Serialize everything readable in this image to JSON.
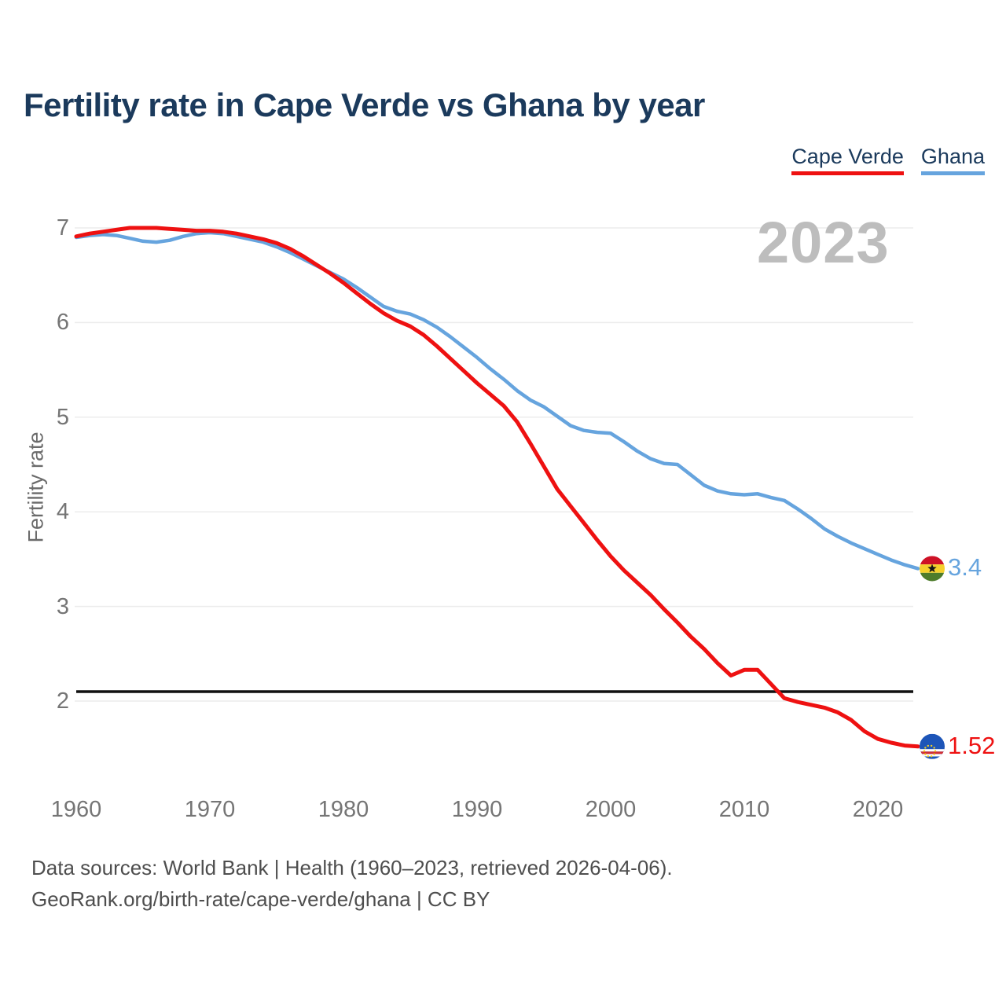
{
  "title": "Fertility rate in Cape Verde vs Ghana by year",
  "legend": [
    {
      "label": "Cape Verde",
      "color": "#ee1111"
    },
    {
      "label": "Ghana",
      "color": "#66a4de"
    }
  ],
  "watermark": "2023",
  "footer": {
    "line1": "Data sources: World Bank | Health (1960–2023, retrieved 2026-04-06).",
    "line2": "GeoRank.org/birth-rate/cape-verde/ghana | CC BY"
  },
  "chart_data": {
    "type": "line",
    "title": "Fertility rate in Cape Verde vs Ghana by year",
    "xlabel": "",
    "ylabel": "Fertility rate",
    "x_start": 1960,
    "x_end": 2023,
    "x_ticks": [
      1960,
      1970,
      1980,
      1990,
      2000,
      2010,
      2020
    ],
    "y_ticks": [
      7,
      6,
      5,
      4,
      3,
      2
    ],
    "ylim": [
      1.3,
      7.1
    ],
    "grid": true,
    "legend_position": "top-right",
    "refline": {
      "value": 2.1,
      "color": "#111111"
    },
    "series": [
      {
        "name": "Ghana",
        "color": "#66a4de",
        "end_label": "3.4",
        "flag": "ghana",
        "values": [
          6.9,
          6.92,
          6.93,
          6.92,
          6.89,
          6.86,
          6.85,
          6.87,
          6.91,
          6.94,
          6.95,
          6.94,
          6.91,
          6.88,
          6.85,
          6.8,
          6.74,
          6.67,
          6.6,
          6.53,
          6.46,
          6.37,
          6.27,
          6.17,
          6.12,
          6.09,
          6.03,
          5.95,
          5.85,
          5.74,
          5.63,
          5.51,
          5.4,
          5.28,
          5.18,
          5.11,
          5.01,
          4.91,
          4.86,
          4.84,
          4.83,
          4.74,
          4.64,
          4.56,
          4.51,
          4.5,
          4.39,
          4.28,
          4.22,
          4.19,
          4.18,
          4.19,
          4.15,
          4.12,
          4.03,
          3.93,
          3.82,
          3.74,
          3.67,
          3.61,
          3.55,
          3.49,
          3.44,
          3.4
        ]
      },
      {
        "name": "Cape Verde",
        "color": "#ee1111",
        "end_label": "1.52",
        "flag": "cape-verde",
        "values": [
          6.91,
          6.94,
          6.96,
          6.98,
          7.0,
          7.0,
          7.0,
          6.99,
          6.98,
          6.97,
          6.97,
          6.96,
          6.94,
          6.91,
          6.88,
          6.84,
          6.78,
          6.7,
          6.61,
          6.52,
          6.42,
          6.31,
          6.2,
          6.1,
          6.02,
          5.96,
          5.87,
          5.75,
          5.62,
          5.49,
          5.36,
          5.24,
          5.12,
          4.95,
          4.72,
          4.48,
          4.24,
          4.06,
          3.88,
          3.7,
          3.53,
          3.38,
          3.25,
          3.12,
          2.97,
          2.83,
          2.68,
          2.55,
          2.4,
          2.27,
          2.33,
          2.33,
          2.18,
          2.03,
          1.99,
          1.96,
          1.93,
          1.88,
          1.8,
          1.68,
          1.6,
          1.56,
          1.53,
          1.52
        ]
      }
    ]
  }
}
